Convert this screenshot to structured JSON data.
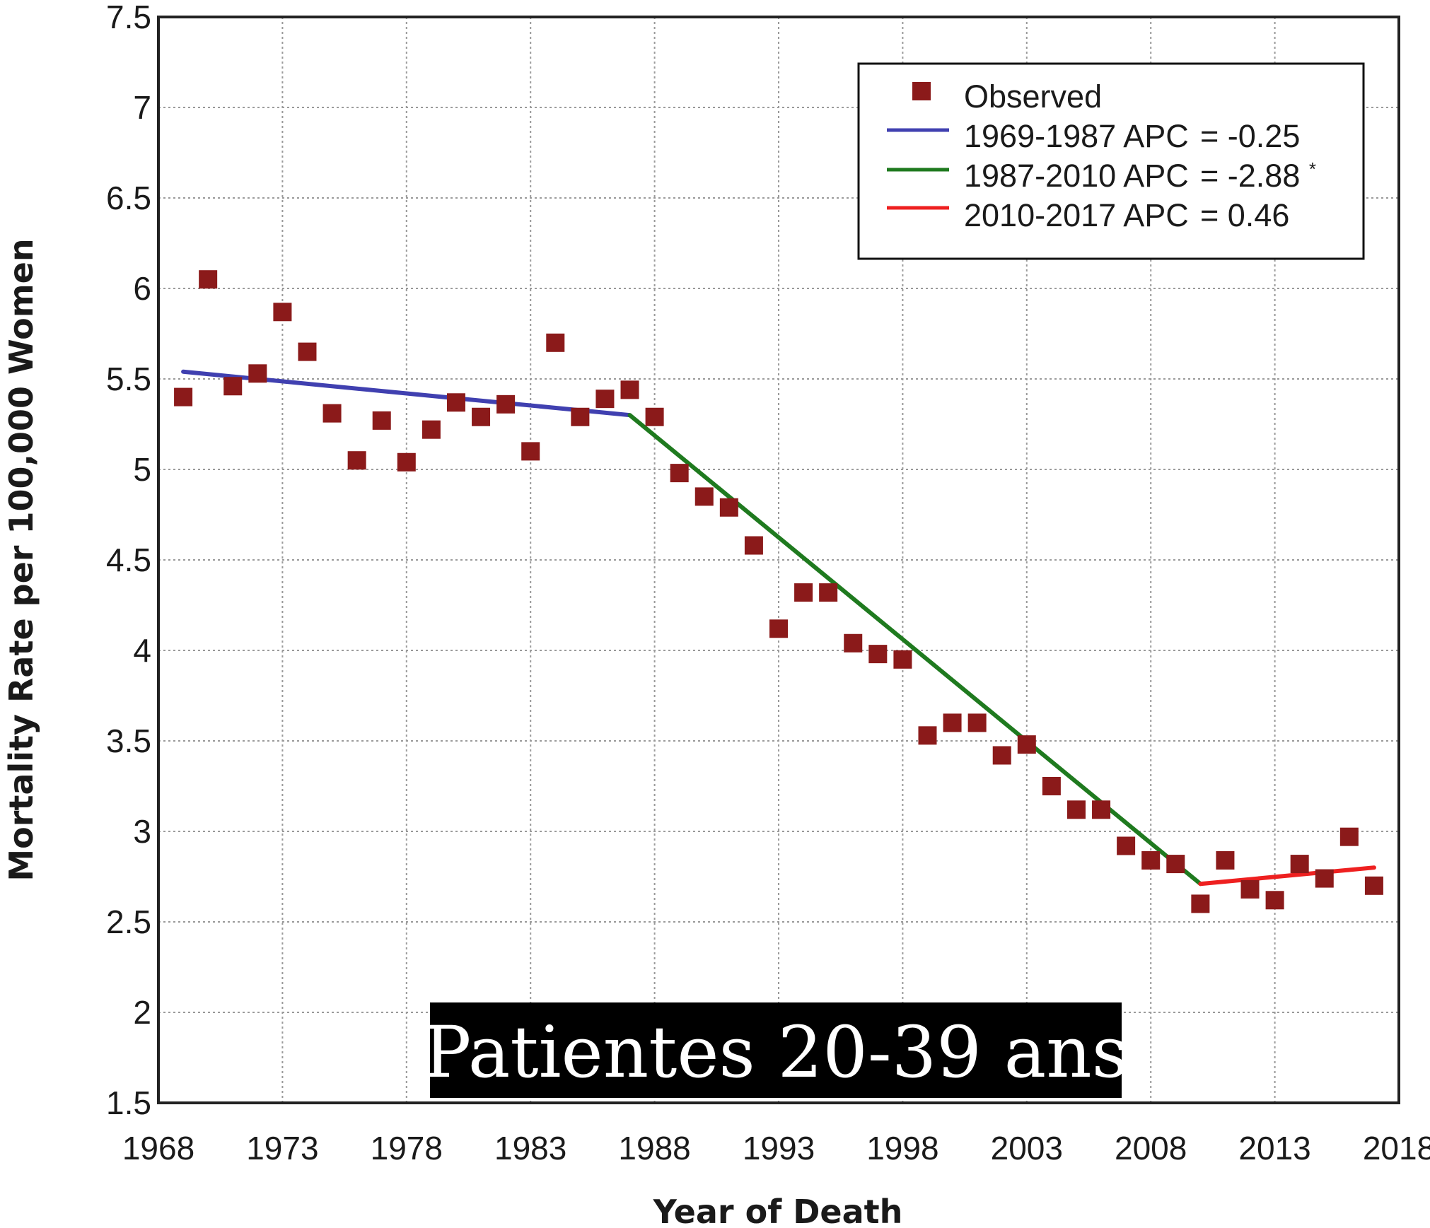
{
  "chart_data": {
    "type": "scatter",
    "xlabel": "Year of Death",
    "ylabel": "Mortality Rate per 100,000 Women",
    "xlim": [
      1968,
      2018
    ],
    "ylim": [
      1.5,
      7.5
    ],
    "x_ticks": [
      "1968",
      "1973",
      "1978",
      "1983",
      "1988",
      "1993",
      "1998",
      "2003",
      "2008",
      "2013",
      "2018"
    ],
    "y_ticks": [
      "7.5",
      "7",
      "6.5",
      "6",
      "5.5",
      "5",
      "4.5",
      "4",
      "3.5",
      "3",
      "2.5",
      "2",
      "1.5"
    ],
    "grid": true,
    "legend_position": "top-right",
    "overlay_label": "Patientes 20-39 ans",
    "observed": {
      "name": "Observed",
      "color": "#8b1a1a",
      "x": [
        1969,
        1970,
        1971,
        1972,
        1973,
        1974,
        1975,
        1976,
        1977,
        1978,
        1979,
        1980,
        1981,
        1982,
        1983,
        1984,
        1985,
        1986,
        1987,
        1988,
        1989,
        1990,
        1991,
        1992,
        1993,
        1994,
        1995,
        1996,
        1997,
        1998,
        1999,
        2000,
        2001,
        2002,
        2003,
        2004,
        2005,
        2006,
        2007,
        2008,
        2009,
        2010,
        2011,
        2012,
        2013,
        2014,
        2015,
        2016,
        2017
      ],
      "y": [
        5.4,
        6.05,
        5.46,
        5.53,
        5.87,
        5.65,
        5.31,
        5.05,
        5.27,
        5.04,
        5.22,
        5.37,
        5.29,
        5.36,
        5.1,
        5.7,
        5.29,
        5.39,
        5.44,
        5.29,
        4.98,
        4.85,
        4.79,
        4.58,
        4.12,
        4.32,
        4.32,
        4.04,
        3.98,
        3.95,
        3.53,
        3.6,
        3.6,
        3.42,
        3.48,
        3.25,
        3.12,
        3.12,
        2.92,
        2.84,
        2.82,
        2.6,
        2.84,
        2.68,
        2.62,
        2.82,
        2.74,
        2.97,
        2.7
      ]
    },
    "segments": [
      {
        "name": "1969-1987 APC",
        "apc": "= -0.25",
        "color": "#4040b0",
        "x": [
          1969,
          1987
        ],
        "y": [
          5.54,
          5.3
        ]
      },
      {
        "name": "1987-2010 APC",
        "apc": "= -2.88",
        "apc_mark": "*",
        "color": "#1f7a1f",
        "x": [
          1987,
          2010
        ],
        "y": [
          5.3,
          2.71
        ]
      },
      {
        "name": "2010-2017 APC",
        "apc": "= 0.46",
        "color": "#ee2020",
        "x": [
          2010,
          2017
        ],
        "y": [
          2.71,
          2.8
        ]
      }
    ]
  }
}
